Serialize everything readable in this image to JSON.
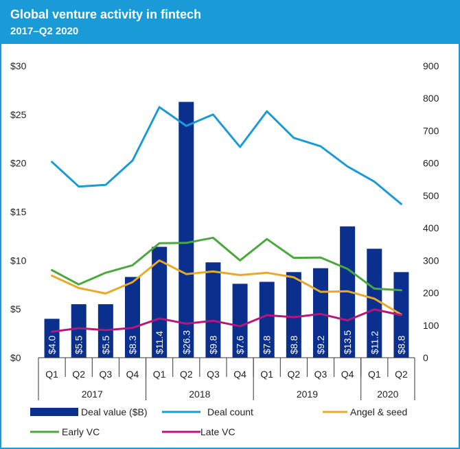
{
  "chart_data": {
    "type": "bar",
    "title": "Global venture activity in fintech",
    "subtitle": "2017–Q2 2020",
    "categories": [
      "Q1",
      "Q2",
      "Q3",
      "Q4",
      "Q1",
      "Q2",
      "Q3",
      "Q4",
      "Q1",
      "Q2",
      "Q3",
      "Q4",
      "Q1",
      "Q2"
    ],
    "years": [
      {
        "label": "2017",
        "count": 4
      },
      {
        "label": "2018",
        "count": 4
      },
      {
        "label": "2019",
        "count": 4
      },
      {
        "label": "2020",
        "count": 2
      }
    ],
    "left_axis": {
      "ylim": [
        0,
        30
      ],
      "ticks": [
        0,
        5,
        10,
        15,
        20,
        25,
        30
      ],
      "tick_labels": [
        "$0",
        "$5",
        "$10",
        "$15",
        "$20",
        "$25",
        "$30"
      ]
    },
    "right_axis": {
      "ylim": [
        0,
        900
      ],
      "ticks": [
        0,
        100,
        200,
        300,
        400,
        500,
        600,
        700,
        800,
        900
      ],
      "tick_labels": [
        "0",
        "100",
        "200",
        "300",
        "400",
        "500",
        "600",
        "700",
        "800",
        "900"
      ]
    },
    "series": [
      {
        "name": "Deal value ($B)",
        "type": "bar",
        "axis": "left",
        "color": "#0b2f8c",
        "values": [
          4.0,
          5.5,
          5.5,
          8.3,
          11.4,
          26.3,
          9.8,
          7.6,
          7.8,
          8.8,
          9.2,
          13.5,
          11.2,
          8.8
        ],
        "data_labels": [
          "$4.0",
          "$5.5",
          "$5.5",
          "$8.3",
          "$11.4",
          "$26.3",
          "$9.8",
          "$7.6",
          "$7.8",
          "$8.8",
          "$9.2",
          "$13.5",
          "$11.2",
          "$8.8"
        ]
      },
      {
        "name": "Deal count",
        "type": "line",
        "axis": "right",
        "color": "#1a9ad6",
        "values": [
          604,
          528,
          533,
          608,
          773,
          715,
          750,
          650,
          760,
          678,
          652,
          590,
          543,
          474
        ]
      },
      {
        "name": "Angel & seed",
        "type": "line",
        "axis": "right",
        "color": "#e8a92a",
        "values": [
          253,
          215,
          198,
          233,
          300,
          258,
          266,
          255,
          262,
          248,
          203,
          205,
          182,
          133
        ]
      },
      {
        "name": "Early VC",
        "type": "line",
        "axis": "right",
        "color": "#4aa83c",
        "values": [
          270,
          226,
          262,
          285,
          353,
          354,
          370,
          300,
          366,
          308,
          309,
          274,
          213,
          208
        ]
      },
      {
        "name": "Late VC",
        "type": "line",
        "axis": "right",
        "color": "#b5167c",
        "values": [
          80,
          91,
          85,
          92,
          121,
          105,
          114,
          97,
          131,
          125,
          135,
          115,
          149,
          131
        ]
      }
    ],
    "legend": [
      {
        "label": "Deal value ($B)",
        "marker": "rect",
        "color": "#0b2f8c"
      },
      {
        "label": "Deal count",
        "marker": "line",
        "color": "#1a9ad6"
      },
      {
        "label": "Angel & seed",
        "marker": "line",
        "color": "#e8a92a"
      },
      {
        "label": "Early VC",
        "marker": "line",
        "color": "#4aa83c"
      },
      {
        "label": "Late VC",
        "marker": "line",
        "color": "#b5167c"
      }
    ]
  }
}
